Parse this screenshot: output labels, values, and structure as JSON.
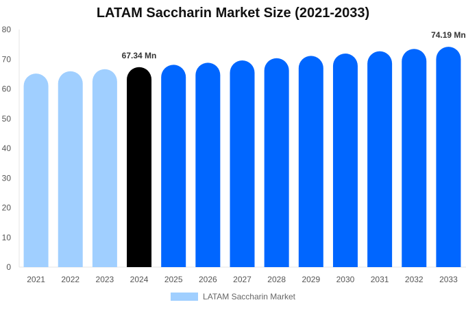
{
  "chart_data": {
    "type": "bar",
    "title": "LATAM Saccharin Market Size (2021-2033)",
    "categories": [
      "2021",
      "2022",
      "2023",
      "2024",
      "2025",
      "2026",
      "2027",
      "2028",
      "2029",
      "2030",
      "2031",
      "2032",
      "2033"
    ],
    "series": [
      {
        "name": "LATAM Saccharin Market",
        "values": [
          65.18,
          65.95,
          66.64,
          67.34,
          68.13,
          68.82,
          69.59,
          70.36,
          71.14,
          71.91,
          72.68,
          73.46,
          74.19
        ]
      }
    ],
    "data_labels": [
      {
        "index": 3,
        "text": "67.34 Mn"
      },
      {
        "index": 12,
        "text": "74.19 Mn"
      }
    ],
    "ylim": [
      0,
      80
    ],
    "yticks": [
      0,
      10,
      20,
      30,
      40,
      50,
      60,
      70,
      80
    ],
    "grid": false,
    "legend_position": "bottom",
    "colors": {
      "historical": "#a0cfff",
      "base_year": "#000000",
      "forecast": "#0066ff"
    },
    "color_groups": [
      "historical",
      "historical",
      "historical",
      "base_year",
      "forecast",
      "forecast",
      "forecast",
      "forecast",
      "forecast",
      "forecast",
      "forecast",
      "forecast",
      "forecast"
    ]
  }
}
